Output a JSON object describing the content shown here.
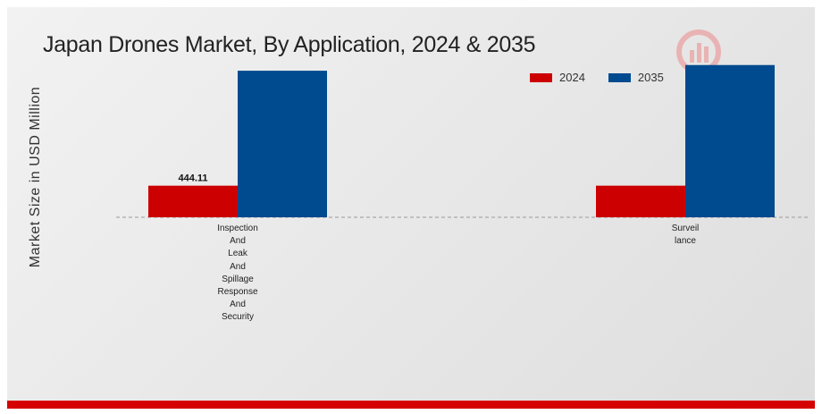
{
  "chart_data": {
    "type": "bar",
    "title": "Japan Drones Market, By Application, 2024 & 2035",
    "ylabel": "Market Size in USD Million",
    "xlabel": "",
    "categories": [
      "Inspection\nAnd\nLeak\nAnd\nSpillage\nResponse\nAnd\nSecurity",
      "Surveil\nlance"
    ],
    "series": [
      {
        "name": "2024",
        "color": "#cc0000",
        "values": [
          444.11,
          444.11
        ]
      },
      {
        "name": "2035",
        "color": "#004a8f",
        "values": [
          2060,
          2140
        ]
      }
    ],
    "data_labels": [
      {
        "series": 0,
        "category": 0,
        "text": "444.11"
      }
    ],
    "ylim": [
      0,
      2300
    ],
    "legend_position": "top-right",
    "grid": false,
    "baseline": "dashed"
  }
}
